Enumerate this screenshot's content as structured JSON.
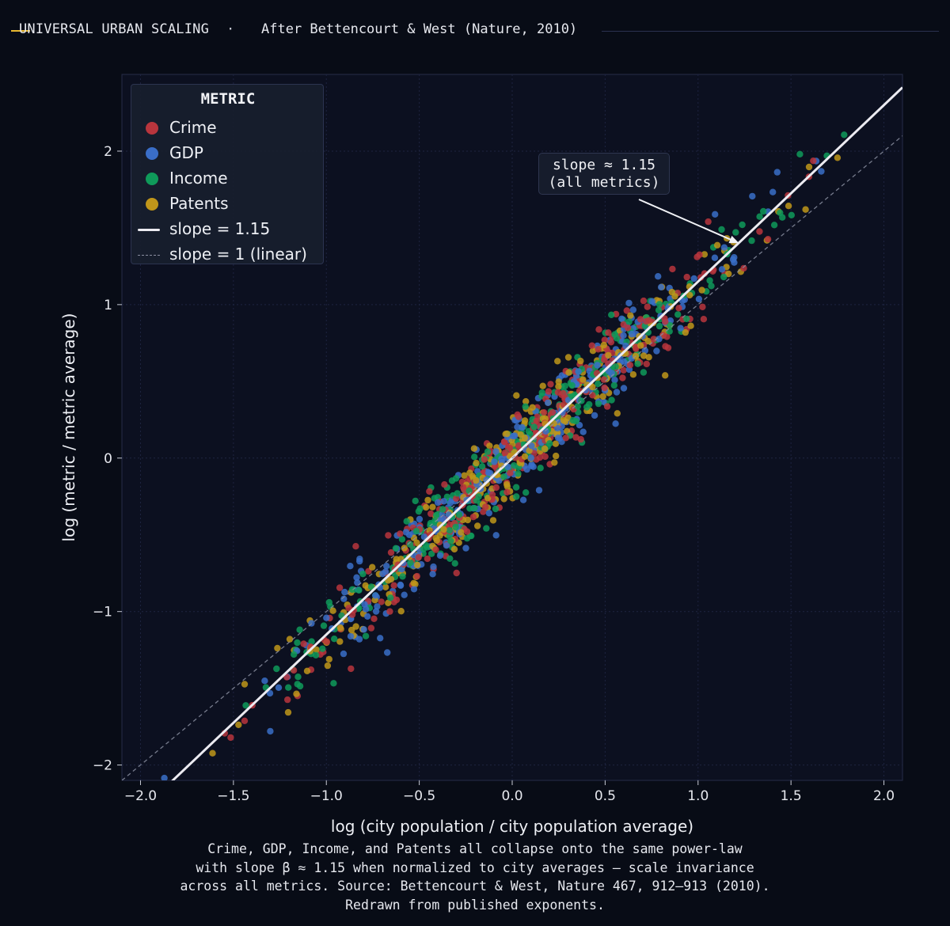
{
  "header": {
    "title": "UNIVERSAL URBAN SCALING",
    "separator": "·",
    "subtitle": "After Bettencourt & West (Nature, 2010)",
    "accent_color": "#e8b830"
  },
  "caption": {
    "lines": [
      "Crime, GDP, Income, and Patents all collapse onto the same power-law",
      "with slope β ≈ 1.15 when normalized to city averages — scale invariance",
      "across all metrics. Source: Bettencourt & West, Nature 467, 912–913 (2010).",
      "Redrawn from published exponents."
    ]
  },
  "chart_data": {
    "type": "scatter",
    "title": "UNIVERSAL URBAN SCALING",
    "xlabel": "log (city population / city population average)",
    "ylabel": "log (metric / metric average)",
    "xlim": [
      -2.1,
      2.1
    ],
    "ylim": [
      -2.1,
      2.5
    ],
    "xticks": [
      -2.0,
      -1.5,
      -1.0,
      -0.5,
      0.0,
      0.5,
      1.0,
      1.5,
      2.0
    ],
    "xtick_labels": [
      "−2.0",
      "−1.5",
      "−1.0",
      "−0.5",
      "0.0",
      "0.5",
      "1.0",
      "1.5",
      "2.0"
    ],
    "yticks": [
      -2,
      -1,
      0,
      1,
      2
    ],
    "ytick_labels": [
      "−2",
      "−1",
      "0",
      "1",
      "2"
    ],
    "grid": true,
    "legend": {
      "title": "METRIC",
      "position": "top-left",
      "entries": [
        "Crime",
        "GDP",
        "Income",
        "Patents",
        "slope = 1.15",
        "slope = 1 (linear)"
      ]
    },
    "series": [
      {
        "name": "Crime",
        "color": "#b8353d",
        "slope": 1.15,
        "noise_sd": 0.13,
        "x_range": [
          -1.95,
          1.85
        ],
        "approx_points": 300
      },
      {
        "name": "GDP",
        "color": "#3a6ec8",
        "slope": 1.15,
        "noise_sd": 0.13,
        "x_range": [
          -1.95,
          1.85
        ],
        "approx_points": 300
      },
      {
        "name": "Income",
        "color": "#0f9a5a",
        "slope": 1.15,
        "noise_sd": 0.13,
        "x_range": [
          -1.95,
          1.85
        ],
        "approx_points": 300
      },
      {
        "name": "Patents",
        "color": "#c0961a",
        "slope": 1.15,
        "noise_sd": 0.13,
        "x_range": [
          -1.95,
          1.85
        ],
        "approx_points": 300
      }
    ],
    "fit_lines": [
      {
        "name": "slope = 1.15",
        "slope": 1.15,
        "intercept": 0,
        "color": "#ecebf1",
        "style": "solid"
      },
      {
        "name": "slope = 1 (linear)",
        "slope": 1.0,
        "intercept": 0,
        "color": "#8a8ea0",
        "style": "dashed"
      }
    ],
    "annotation": {
      "lines": [
        "slope ≈ 1.15",
        "(all metrics)"
      ],
      "arrow_to": [
        1.22,
        1.4
      ]
    }
  }
}
